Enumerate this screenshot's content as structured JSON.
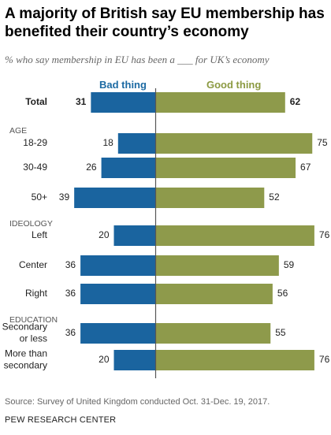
{
  "title": "A majority of British say EU membership has benefited their country’s economy",
  "subtitle": "% who say membership in EU has been a ___ for UK’s economy",
  "legend": {
    "bad": "Bad thing",
    "good": "Good thing"
  },
  "colors": {
    "bad": "#1a649f",
    "good": "#8e9a4b",
    "divider": "#555555"
  },
  "chart_data": {
    "type": "bar",
    "orientation": "diverging-horizontal",
    "series": [
      {
        "name": "Bad thing",
        "values": [
          31,
          18,
          26,
          39,
          20,
          36,
          36,
          36,
          20
        ]
      },
      {
        "name": "Good thing",
        "values": [
          62,
          75,
          67,
          52,
          76,
          59,
          56,
          55,
          76
        ]
      }
    ],
    "categories": [
      "Total",
      "18-29",
      "30-49",
      "50+",
      "Left",
      "Center",
      "Right",
      "Secondary or less",
      "More than secondary"
    ],
    "category_lines": [
      [
        "Total"
      ],
      [
        "18-29"
      ],
      [
        "30-49"
      ],
      [
        "50+"
      ],
      [
        "Left"
      ],
      [
        "Center"
      ],
      [
        "Right"
      ],
      [
        "Secondary",
        "or less"
      ],
      [
        "More than",
        "secondary"
      ]
    ],
    "bold_categories": [
      "Total"
    ],
    "groups": [
      {
        "label": "AGE",
        "before_index": 1
      },
      {
        "label": "IDEOLOGY",
        "before_index": 4
      },
      {
        "label": "EDUCATION",
        "before_index": 7
      }
    ]
  },
  "source": "Source: Survey of United Kingdom conducted Oct. 31-Dec. 19, 2017.",
  "brand": "PEW RESEARCH CENTER"
}
